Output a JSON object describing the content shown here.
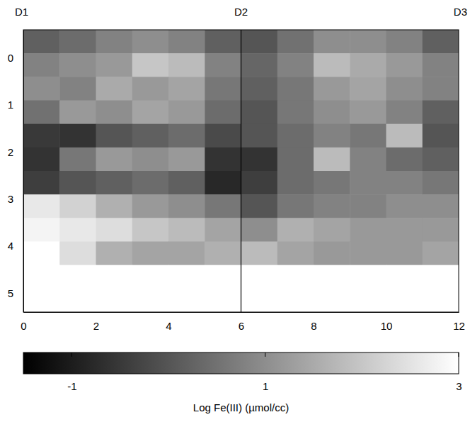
{
  "chart_data": {
    "type": "heatmap",
    "xlim": [
      0,
      12
    ],
    "ylim": [
      -0.6,
      5.4
    ],
    "xticks": [
      0,
      2,
      4,
      6,
      8,
      10,
      12
    ],
    "yticks": [
      0,
      1,
      2,
      3,
      4,
      5
    ],
    "x_edges": [
      0,
      1,
      2,
      3,
      4,
      5,
      6,
      7,
      8,
      9,
      10,
      11,
      12
    ],
    "y_edges": [
      -0.6,
      -0.1,
      0.4,
      0.9,
      1.4,
      1.9,
      2.4,
      2.9,
      3.4,
      3.9,
      4.4,
      4.9,
      5.4
    ],
    "z": [
      [
        0.2,
        0.4,
        0.8,
        1.0,
        0.8,
        0.2,
        0.0,
        0.5,
        1.0,
        1.0,
        0.8,
        0.2
      ],
      [
        0.8,
        1.0,
        1.2,
        2.0,
        1.8,
        0.8,
        0.3,
        0.8,
        1.8,
        1.5,
        1.2,
        0.8
      ],
      [
        1.0,
        0.8,
        1.5,
        1.2,
        1.4,
        0.6,
        0.2,
        0.6,
        1.2,
        1.4,
        1.0,
        0.8
      ],
      [
        0.5,
        1.2,
        1.0,
        1.4,
        1.2,
        0.4,
        0.0,
        0.6,
        1.0,
        1.2,
        0.8,
        0.2
      ],
      [
        -0.5,
        -0.6,
        0.0,
        0.2,
        0.4,
        -0.2,
        0.0,
        0.4,
        0.8,
        0.6,
        1.8,
        0.0
      ],
      [
        -0.6,
        0.6,
        1.2,
        1.0,
        1.2,
        -0.6,
        -0.6,
        0.4,
        1.8,
        0.8,
        0.4,
        0.2
      ],
      [
        -0.4,
        0.0,
        0.2,
        0.4,
        0.2,
        -0.8,
        -0.4,
        0.4,
        0.6,
        0.8,
        0.8,
        0.6
      ],
      [
        2.6,
        2.2,
        1.6,
        1.2,
        1.0,
        0.6,
        0.0,
        0.6,
        0.8,
        0.8,
        1.0,
        1.0
      ],
      [
        2.8,
        2.6,
        2.4,
        2.0,
        1.8,
        1.4,
        1.0,
        1.6,
        1.4,
        1.2,
        1.2,
        1.2
      ],
      [
        3.0,
        2.4,
        1.6,
        1.4,
        1.4,
        1.6,
        1.8,
        1.4,
        1.2,
        1.2,
        1.2,
        1.4
      ],
      [
        3.0,
        3.0,
        3.0,
        3.0,
        3.0,
        3.0,
        3.0,
        3.0,
        3.0,
        3.0,
        3.0,
        3.0
      ],
      [
        3.0,
        3.0,
        3.0,
        3.0,
        3.0,
        3.0,
        3.0,
        3.0,
        3.0,
        3.0,
        3.0,
        3.0
      ]
    ],
    "top_labels": [
      {
        "x": 0,
        "label": "D1"
      },
      {
        "x": 6,
        "label": "D2"
      },
      {
        "x": 12,
        "label": "D3"
      }
    ],
    "vlines": [
      6
    ],
    "colorbar": {
      "range": [
        -1.5,
        3
      ],
      "ticks": [
        -1,
        1,
        3
      ],
      "label": "Log Fe(III) (µmol/cc)"
    }
  }
}
